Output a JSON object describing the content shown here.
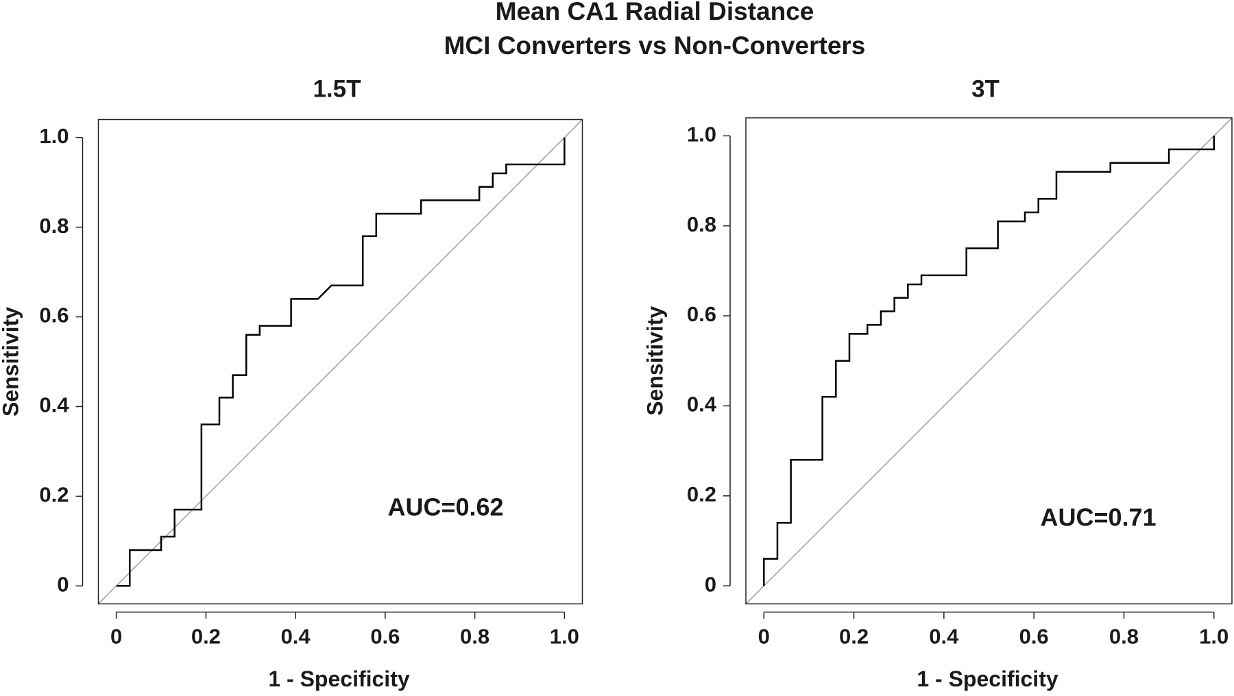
{
  "title": [
    "Mean CA1 Radial Distance",
    "MCI Converters vs Non-Converters"
  ],
  "chart_data": [
    {
      "type": "line",
      "title": "1.5T",
      "xlabel": "1 - Specificity",
      "ylabel": "Sensitivity",
      "color": "#000000",
      "x": [
        0,
        0.03,
        0.03,
        0.1,
        0.1,
        0.13,
        0.13,
        0.19,
        0.19,
        0.23,
        0.23,
        0.26,
        0.26,
        0.29,
        0.29,
        0.32,
        0.32,
        0.39,
        0.39,
        0.45,
        0.48,
        0.55,
        0.55,
        0.58,
        0.58,
        0.68,
        0.68,
        0.81,
        0.81,
        0.84,
        0.84,
        0.87,
        0.87,
        1,
        1
      ],
      "y": [
        0,
        0,
        0.08,
        0.08,
        0.11,
        0.11,
        0.17,
        0.17,
        0.36,
        0.36,
        0.42,
        0.42,
        0.47,
        0.47,
        0.56,
        0.56,
        0.58,
        0.58,
        0.64,
        0.64,
        0.67,
        0.67,
        0.78,
        0.78,
        0.83,
        0.83,
        0.86,
        0.86,
        0.89,
        0.89,
        0.92,
        0.92,
        0.94,
        0.94,
        1
      ],
      "xlim": [
        -0.04,
        1.04
      ],
      "ylim": [
        -0.04,
        1.04
      ],
      "xticks": [
        0,
        0.2,
        0.4,
        0.6,
        0.8,
        {
          "value": 1,
          "label": "1.0"
        }
      ],
      "yticks": [
        0,
        0.2,
        0.4,
        0.6,
        0.8,
        {
          "value": 1,
          "label": "1.0"
        }
      ],
      "annotations": [
        "AUC=0.62"
      ]
    },
    {
      "type": "line",
      "title": "3T",
      "xlabel": "1 - Specificity",
      "ylabel": "Sensitivity",
      "color": "#000000",
      "x": [
        0,
        0,
        0.03,
        0.03,
        0.06,
        0.06,
        0.13,
        0.13,
        0.16,
        0.16,
        0.19,
        0.19,
        0.23,
        0.23,
        0.26,
        0.26,
        0.29,
        0.29,
        0.32,
        0.32,
        0.35,
        0.35,
        0.45,
        0.45,
        0.52,
        0.52,
        0.58,
        0.58,
        0.61,
        0.61,
        0.65,
        0.65,
        0.77,
        0.77,
        0.9,
        0.9,
        1,
        1
      ],
      "y": [
        0,
        0.06,
        0.06,
        0.14,
        0.14,
        0.28,
        0.28,
        0.42,
        0.42,
        0.5,
        0.5,
        0.56,
        0.56,
        0.58,
        0.58,
        0.61,
        0.61,
        0.64,
        0.64,
        0.67,
        0.67,
        0.69,
        0.69,
        0.75,
        0.75,
        0.81,
        0.81,
        0.83,
        0.83,
        0.86,
        0.86,
        0.92,
        0.92,
        0.94,
        0.94,
        0.97,
        0.97,
        1
      ],
      "xlim": [
        -0.04,
        1.04
      ],
      "ylim": [
        -0.04,
        1.04
      ],
      "xticks": [
        0,
        0.2,
        0.4,
        0.6,
        0.8,
        {
          "value": 1,
          "label": "1.0"
        }
      ],
      "yticks": [
        0,
        0.2,
        0.4,
        0.6,
        0.8,
        {
          "value": 1,
          "label": "1.0"
        }
      ],
      "annotations": [
        "AUC=0.71"
      ]
    }
  ]
}
